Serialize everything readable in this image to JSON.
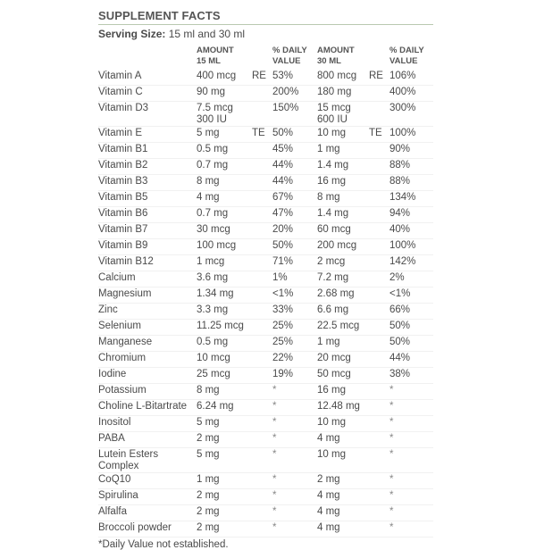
{
  "title": "SUPPLEMENT FACTS",
  "serving": {
    "label": "Serving Size:",
    "value": "15 ml and 30 ml"
  },
  "headers": {
    "amount15": [
      "AMOUNT",
      "15 ML"
    ],
    "dv15": [
      "% DAILY",
      "VALUE"
    ],
    "amount30": [
      "AMOUNT",
      "30 ML"
    ],
    "dv30": [
      "% DAILY",
      "VALUE"
    ]
  },
  "rows": [
    {
      "name": [
        "Vitamin A"
      ],
      "a15": [
        "400 mcg"
      ],
      "u15": "RE",
      "dv15": "53%",
      "a30": [
        "800 mcg"
      ],
      "u30": "RE",
      "dv30": "106%"
    },
    {
      "name": [
        "Vitamin C"
      ],
      "a15": [
        "90 mg"
      ],
      "u15": "",
      "dv15": "200%",
      "a30": [
        "180 mg"
      ],
      "u30": "",
      "dv30": "400%"
    },
    {
      "name": [
        "Vitamin D3"
      ],
      "a15": [
        "7.5 mcg",
        "300 IU"
      ],
      "u15": "",
      "dv15": "150%",
      "a30": [
        "15 mcg",
        "600 IU"
      ],
      "u30": "",
      "dv30": "300%"
    },
    {
      "name": [
        "Vitamin E"
      ],
      "a15": [
        "5 mg"
      ],
      "u15": "TE",
      "dv15": "50%",
      "a30": [
        "10 mg"
      ],
      "u30": "TE",
      "dv30": "100%"
    },
    {
      "name": [
        "Vitamin B1"
      ],
      "a15": [
        "0.5 mg"
      ],
      "u15": "",
      "dv15": "45%",
      "a30": [
        "1 mg"
      ],
      "u30": "",
      "dv30": "90%"
    },
    {
      "name": [
        "Vitamin B2"
      ],
      "a15": [
        "0.7 mg"
      ],
      "u15": "",
      "dv15": "44%",
      "a30": [
        "1.4 mg"
      ],
      "u30": "",
      "dv30": "88%"
    },
    {
      "name": [
        "Vitamin B3"
      ],
      "a15": [
        "8 mg"
      ],
      "u15": "",
      "dv15": "44%",
      "a30": [
        "16 mg"
      ],
      "u30": "",
      "dv30": "88%"
    },
    {
      "name": [
        "Vitamin B5"
      ],
      "a15": [
        "4 mg"
      ],
      "u15": "",
      "dv15": "67%",
      "a30": [
        "8 mg"
      ],
      "u30": "",
      "dv30": "134%"
    },
    {
      "name": [
        "Vitamin B6"
      ],
      "a15": [
        "0.7 mg"
      ],
      "u15": "",
      "dv15": "47%",
      "a30": [
        "1.4 mg"
      ],
      "u30": "",
      "dv30": "94%"
    },
    {
      "name": [
        "Vitamin B7"
      ],
      "a15": [
        "30 mcg"
      ],
      "u15": "",
      "dv15": "20%",
      "a30": [
        "60 mcg"
      ],
      "u30": "",
      "dv30": "40%"
    },
    {
      "name": [
        "Vitamin B9"
      ],
      "a15": [
        "100 mcg"
      ],
      "u15": "",
      "dv15": "50%",
      "a30": [
        "200 mcg"
      ],
      "u30": "",
      "dv30": "100%"
    },
    {
      "name": [
        "Vitamin B12"
      ],
      "a15": [
        "1 mcg"
      ],
      "u15": "",
      "dv15": "71%",
      "a30": [
        "2 mcg"
      ],
      "u30": "",
      "dv30": "142%"
    },
    {
      "name": [
        "Calcium"
      ],
      "a15": [
        "3.6 mg"
      ],
      "u15": "",
      "dv15": "1%",
      "a30": [
        "7.2 mg"
      ],
      "u30": "",
      "dv30": "2%"
    },
    {
      "name": [
        "Magnesium"
      ],
      "a15": [
        "1.34 mg"
      ],
      "u15": "",
      "dv15": "<1%",
      "a30": [
        "2.68 mg"
      ],
      "u30": "",
      "dv30": "<1%"
    },
    {
      "name": [
        "Zinc"
      ],
      "a15": [
        "3.3 mg"
      ],
      "u15": "",
      "dv15": "33%",
      "a30": [
        "6.6 mg"
      ],
      "u30": "",
      "dv30": "66%"
    },
    {
      "name": [
        "Selenium"
      ],
      "a15": [
        "11.25 mcg"
      ],
      "u15": "",
      "dv15": "25%",
      "a30": [
        "22.5 mcg"
      ],
      "u30": "",
      "dv30": "50%"
    },
    {
      "name": [
        "Manganese"
      ],
      "a15": [
        "0.5 mg"
      ],
      "u15": "",
      "dv15": "25%",
      "a30": [
        "1 mg"
      ],
      "u30": "",
      "dv30": "50%"
    },
    {
      "name": [
        "Chromium"
      ],
      "a15": [
        "10 mcg"
      ],
      "u15": "",
      "dv15": "22%",
      "a30": [
        "20 mcg"
      ],
      "u30": "",
      "dv30": "44%"
    },
    {
      "name": [
        "Iodine"
      ],
      "a15": [
        "25 mcg"
      ],
      "u15": "",
      "dv15": "19%",
      "a30": [
        "50 mcg"
      ],
      "u30": "",
      "dv30": "38%"
    },
    {
      "name": [
        "Potassium"
      ],
      "a15": [
        "8 mg"
      ],
      "u15": "",
      "dv15": "*",
      "a30": [
        "16 mg"
      ],
      "u30": "",
      "dv30": "*"
    },
    {
      "name": [
        "Choline L-Bitartrate"
      ],
      "a15": [
        "6.24 mg"
      ],
      "u15": "",
      "dv15": "*",
      "a30": [
        "12.48 mg"
      ],
      "u30": "",
      "dv30": "*"
    },
    {
      "name": [
        "Inositol"
      ],
      "a15": [
        "5 mg"
      ],
      "u15": "",
      "dv15": "*",
      "a30": [
        "10 mg"
      ],
      "u30": "",
      "dv30": "*"
    },
    {
      "name": [
        "PABA"
      ],
      "a15": [
        "2 mg"
      ],
      "u15": "",
      "dv15": "*",
      "a30": [
        "4 mg"
      ],
      "u30": "",
      "dv30": "*"
    },
    {
      "name": [
        "Lutein Esters",
        "Complex"
      ],
      "a15": [
        "5 mg"
      ],
      "u15": "",
      "dv15": "*",
      "a30": [
        "10 mg"
      ],
      "u30": "",
      "dv30": "*"
    },
    {
      "name": [
        "CoQ10"
      ],
      "a15": [
        "1 mg"
      ],
      "u15": "",
      "dv15": "*",
      "a30": [
        "2 mg"
      ],
      "u30": "",
      "dv30": "*"
    },
    {
      "name": [
        "Spirulina"
      ],
      "a15": [
        "2 mg"
      ],
      "u15": "",
      "dv15": "*",
      "a30": [
        "4 mg"
      ],
      "u30": "",
      "dv30": "*"
    },
    {
      "name": [
        "Alfalfa"
      ],
      "a15": [
        "2 mg"
      ],
      "u15": "",
      "dv15": "*",
      "a30": [
        "4 mg"
      ],
      "u30": "",
      "dv30": "*"
    },
    {
      "name": [
        "Broccoli powder"
      ],
      "a15": [
        "2 mg"
      ],
      "u15": "",
      "dv15": "*",
      "a30": [
        "4 mg"
      ],
      "u30": "",
      "dv30": "*"
    }
  ],
  "footnote": "*Daily Value not established.",
  "colors": {
    "rule": "#b9c9b0",
    "text": "#4a4a4a"
  }
}
